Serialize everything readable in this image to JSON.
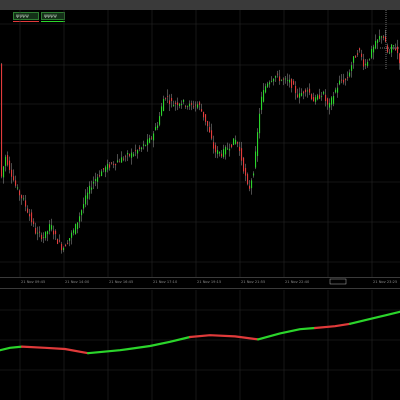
{
  "legend": [
    {
      "label": "ΨΨΨΨ",
      "line_color": "#e03a3a"
    },
    {
      "label": "ΨΨΨΨ",
      "line_color": "#2bd52b"
    }
  ],
  "colors": {
    "background": "#000000",
    "grid": "#262626",
    "candle_up": "#2bd52b",
    "candle_down": "#e23b3b",
    "wick": "#9a9a9a",
    "trend_up": "#2bd52b",
    "trend_down": "#e03a3a",
    "axis_text": "#8a8a8a",
    "cursor": "#dddddd"
  },
  "chart_data": [
    {
      "type": "candlestick",
      "title": "",
      "xlabel": "",
      "ylabel": "",
      "ylim": [
        0,
        100
      ],
      "grid": true,
      "legend_position": "top-left",
      "x_tick_labels": [
        "21 Nov 09:45",
        "21 Nov 14:00",
        "21 Nov 16:45",
        "21 Nov 17:10",
        "21 Nov 19:15",
        "21 Nov 21:55",
        "21 Nov 22:40",
        "21 Nov 23:25"
      ],
      "price_path": [
        [
          0,
          40
        ],
        [
          5,
          51
        ],
        [
          10,
          45
        ],
        [
          16,
          37
        ],
        [
          22,
          33
        ],
        [
          28,
          27
        ],
        [
          36,
          18
        ],
        [
          44,
          17
        ],
        [
          50,
          22
        ],
        [
          56,
          16
        ],
        [
          62,
          12
        ],
        [
          68,
          16
        ],
        [
          74,
          20
        ],
        [
          84,
          32
        ],
        [
          92,
          40
        ],
        [
          102,
          45
        ],
        [
          112,
          48
        ],
        [
          122,
          50
        ],
        [
          132,
          52
        ],
        [
          140,
          54
        ],
        [
          150,
          58
        ],
        [
          158,
          66
        ],
        [
          164,
          77
        ],
        [
          172,
          73
        ],
        [
          180,
          74
        ],
        [
          190,
          72
        ],
        [
          198,
          73
        ],
        [
          206,
          65
        ],
        [
          214,
          53
        ],
        [
          222,
          52
        ],
        [
          230,
          56
        ],
        [
          236,
          58
        ],
        [
          242,
          48
        ],
        [
          248,
          36
        ],
        [
          254,
          47
        ],
        [
          260,
          74
        ],
        [
          266,
          82
        ],
        [
          274,
          85
        ],
        [
          282,
          83
        ],
        [
          290,
          82
        ],
        [
          298,
          76
        ],
        [
          306,
          80
        ],
        [
          314,
          74
        ],
        [
          322,
          78
        ],
        [
          328,
          71
        ],
        [
          334,
          78
        ],
        [
          340,
          83
        ],
        [
          346,
          83
        ],
        [
          352,
          91
        ],
        [
          358,
          96
        ],
        [
          364,
          89
        ],
        [
          370,
          94
        ],
        [
          376,
          99
        ],
        [
          382,
          103
        ],
        [
          388,
          93
        ],
        [
          392,
          98
        ],
        [
          396,
          96
        ],
        [
          400,
          90
        ]
      ]
    },
    {
      "type": "line",
      "title": "",
      "ylim": [
        0,
        100
      ],
      "segments": [
        {
          "trend": "up",
          "points": [
            [
              0,
              8
            ],
            [
              10,
              12
            ],
            [
              22,
              14
            ]
          ]
        },
        {
          "trend": "down",
          "points": [
            [
              22,
              14
            ],
            [
              45,
              12
            ],
            [
              65,
              10
            ],
            [
              88,
              3
            ]
          ]
        },
        {
          "trend": "up",
          "points": [
            [
              88,
              3
            ],
            [
              120,
              8
            ],
            [
              150,
              15
            ],
            [
              170,
              22
            ],
            [
              190,
              30
            ]
          ]
        },
        {
          "trend": "down",
          "points": [
            [
              190,
              30
            ],
            [
              210,
              33
            ],
            [
              235,
              31
            ],
            [
              258,
              26
            ]
          ]
        },
        {
          "trend": "up",
          "points": [
            [
              258,
              26
            ],
            [
              280,
              36
            ],
            [
              300,
              43
            ],
            [
              315,
              45
            ]
          ]
        },
        {
          "trend": "down",
          "points": [
            [
              315,
              45
            ],
            [
              335,
              48
            ],
            [
              350,
              52
            ]
          ]
        },
        {
          "trend": "up",
          "points": [
            [
              350,
              52
            ],
            [
              365,
              58
            ],
            [
              385,
              66
            ],
            [
              400,
              72
            ]
          ]
        }
      ]
    }
  ]
}
